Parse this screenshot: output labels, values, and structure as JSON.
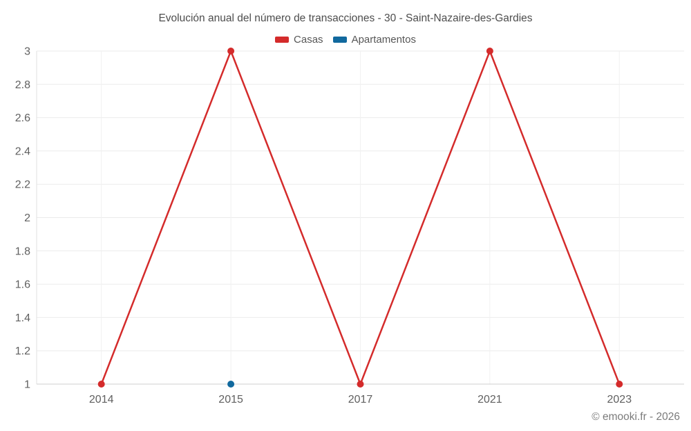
{
  "footer": {
    "credit": "© emooki.fr - 2026"
  },
  "colors": {
    "grid_horizontal": "#ebebeb",
    "grid_vertical": "#f1f1f1",
    "axis_bottom": "#cfcfcf",
    "axis_left": "#e2e2e2",
    "tick_text": "#606060",
    "title_text": "#4d4d4d",
    "legend_text": "#565656",
    "footer_text": "#7b7b7b"
  },
  "chart_data": {
    "type": "line",
    "title": "Evolución anual del número de transacciones - 30 - Saint-Nazaire-des-Gardies",
    "xlabel": "",
    "ylabel": "",
    "categories": [
      "2014",
      "2015",
      "2017",
      "2021",
      "2023"
    ],
    "series": [
      {
        "name": "Casas",
        "color": "#d42b2b",
        "values": [
          1,
          3,
          1,
          3,
          1
        ]
      },
      {
        "name": "Apartamentos",
        "color": "#11699e",
        "values": [
          null,
          1,
          null,
          null,
          null
        ]
      }
    ],
    "ylim": [
      1,
      3
    ],
    "ytick_step": 0.2,
    "ytick_labels": [
      "1",
      "1.2",
      "1.4",
      "1.6",
      "1.8",
      "2",
      "2.2",
      "2.4",
      "2.6",
      "2.8",
      "3"
    ],
    "grid": true,
    "legend_position": "top",
    "marker_radius": 5,
    "line_width": 2.5
  }
}
